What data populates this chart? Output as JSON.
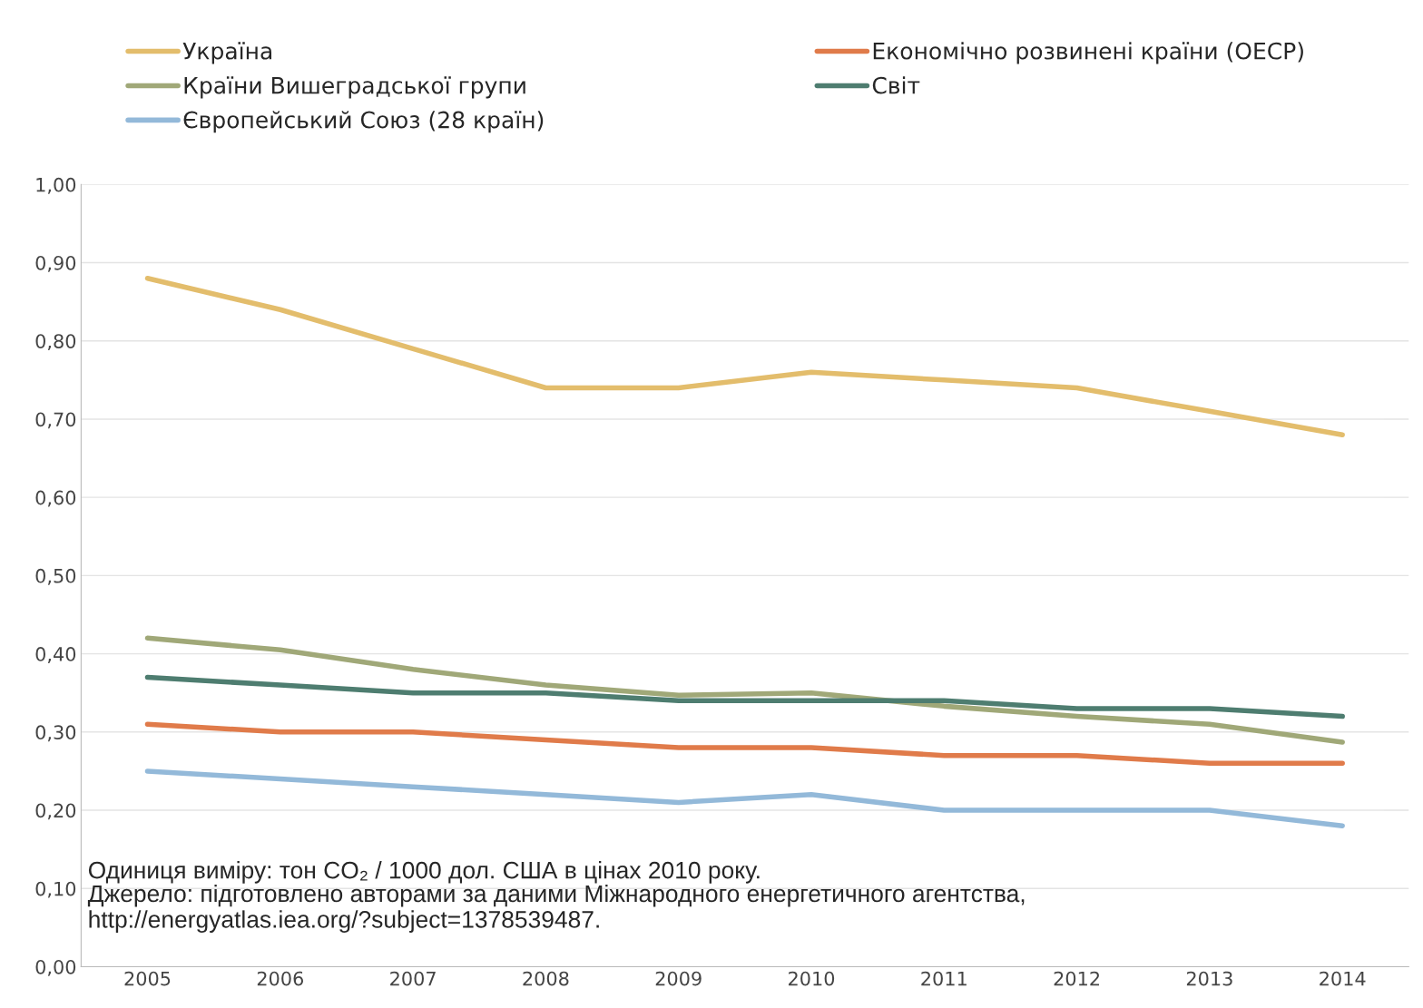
{
  "chart_data": {
    "type": "line",
    "categories": [
      "2005",
      "2006",
      "2007",
      "2008",
      "2009",
      "2010",
      "2011",
      "2012",
      "2013",
      "2014"
    ],
    "series": [
      {
        "name": "Україна",
        "color": "#e3bd6c",
        "values": [
          0.88,
          0.84,
          0.79,
          0.74,
          0.74,
          0.76,
          0.75,
          0.74,
          0.71,
          0.68
        ]
      },
      {
        "name": "Країни Вишеградської групи",
        "color": "#a0a878",
        "values": [
          0.42,
          0.405,
          0.38,
          0.36,
          0.347,
          0.35,
          0.333,
          0.32,
          0.31,
          0.287
        ]
      },
      {
        "name": "Європейський Союз (28 країн)",
        "color": "#93b9d9",
        "values": [
          0.25,
          0.24,
          0.23,
          0.22,
          0.21,
          0.22,
          0.2,
          0.2,
          0.2,
          0.18
        ]
      },
      {
        "name": "Економічно розвинені країни (ОЕСР)",
        "color": "#e07b4a",
        "values": [
          0.31,
          0.3,
          0.3,
          0.29,
          0.28,
          0.28,
          0.27,
          0.27,
          0.26,
          0.26
        ]
      },
      {
        "name": "Світ",
        "color": "#4e7d70",
        "values": [
          0.37,
          0.36,
          0.35,
          0.35,
          0.34,
          0.34,
          0.34,
          0.33,
          0.33,
          0.32
        ]
      }
    ],
    "ylim": [
      0,
      1
    ],
    "yticks": [
      {
        "value": 0,
        "label": "0,00"
      },
      {
        "value": 0.1,
        "label": "0,10"
      },
      {
        "value": 0.2,
        "label": "0,20"
      },
      {
        "value": 0.3,
        "label": "0,30"
      },
      {
        "value": 0.4,
        "label": "0,40"
      },
      {
        "value": 0.5,
        "label": "0,50"
      },
      {
        "value": 0.6,
        "label": "0,60"
      },
      {
        "value": 0.7,
        "label": "0,70"
      },
      {
        "value": 0.8,
        "label": "0,80"
      },
      {
        "value": 0.9,
        "label": "0,90"
      },
      {
        "value": 1,
        "label": "1,00"
      }
    ],
    "grid": "y",
    "legend": "top",
    "marker": "none",
    "line_style": "solid",
    "annotations": [
      "Одиниця виміру: тон CO₂ / 1000 дол. США в цінах 2010 року.",
      "Джерело: підготовлено авторами за даними Міжнародного енергетичного агентства,\nhttp://energyatlas.iea.org/?subject=1378539487."
    ]
  }
}
